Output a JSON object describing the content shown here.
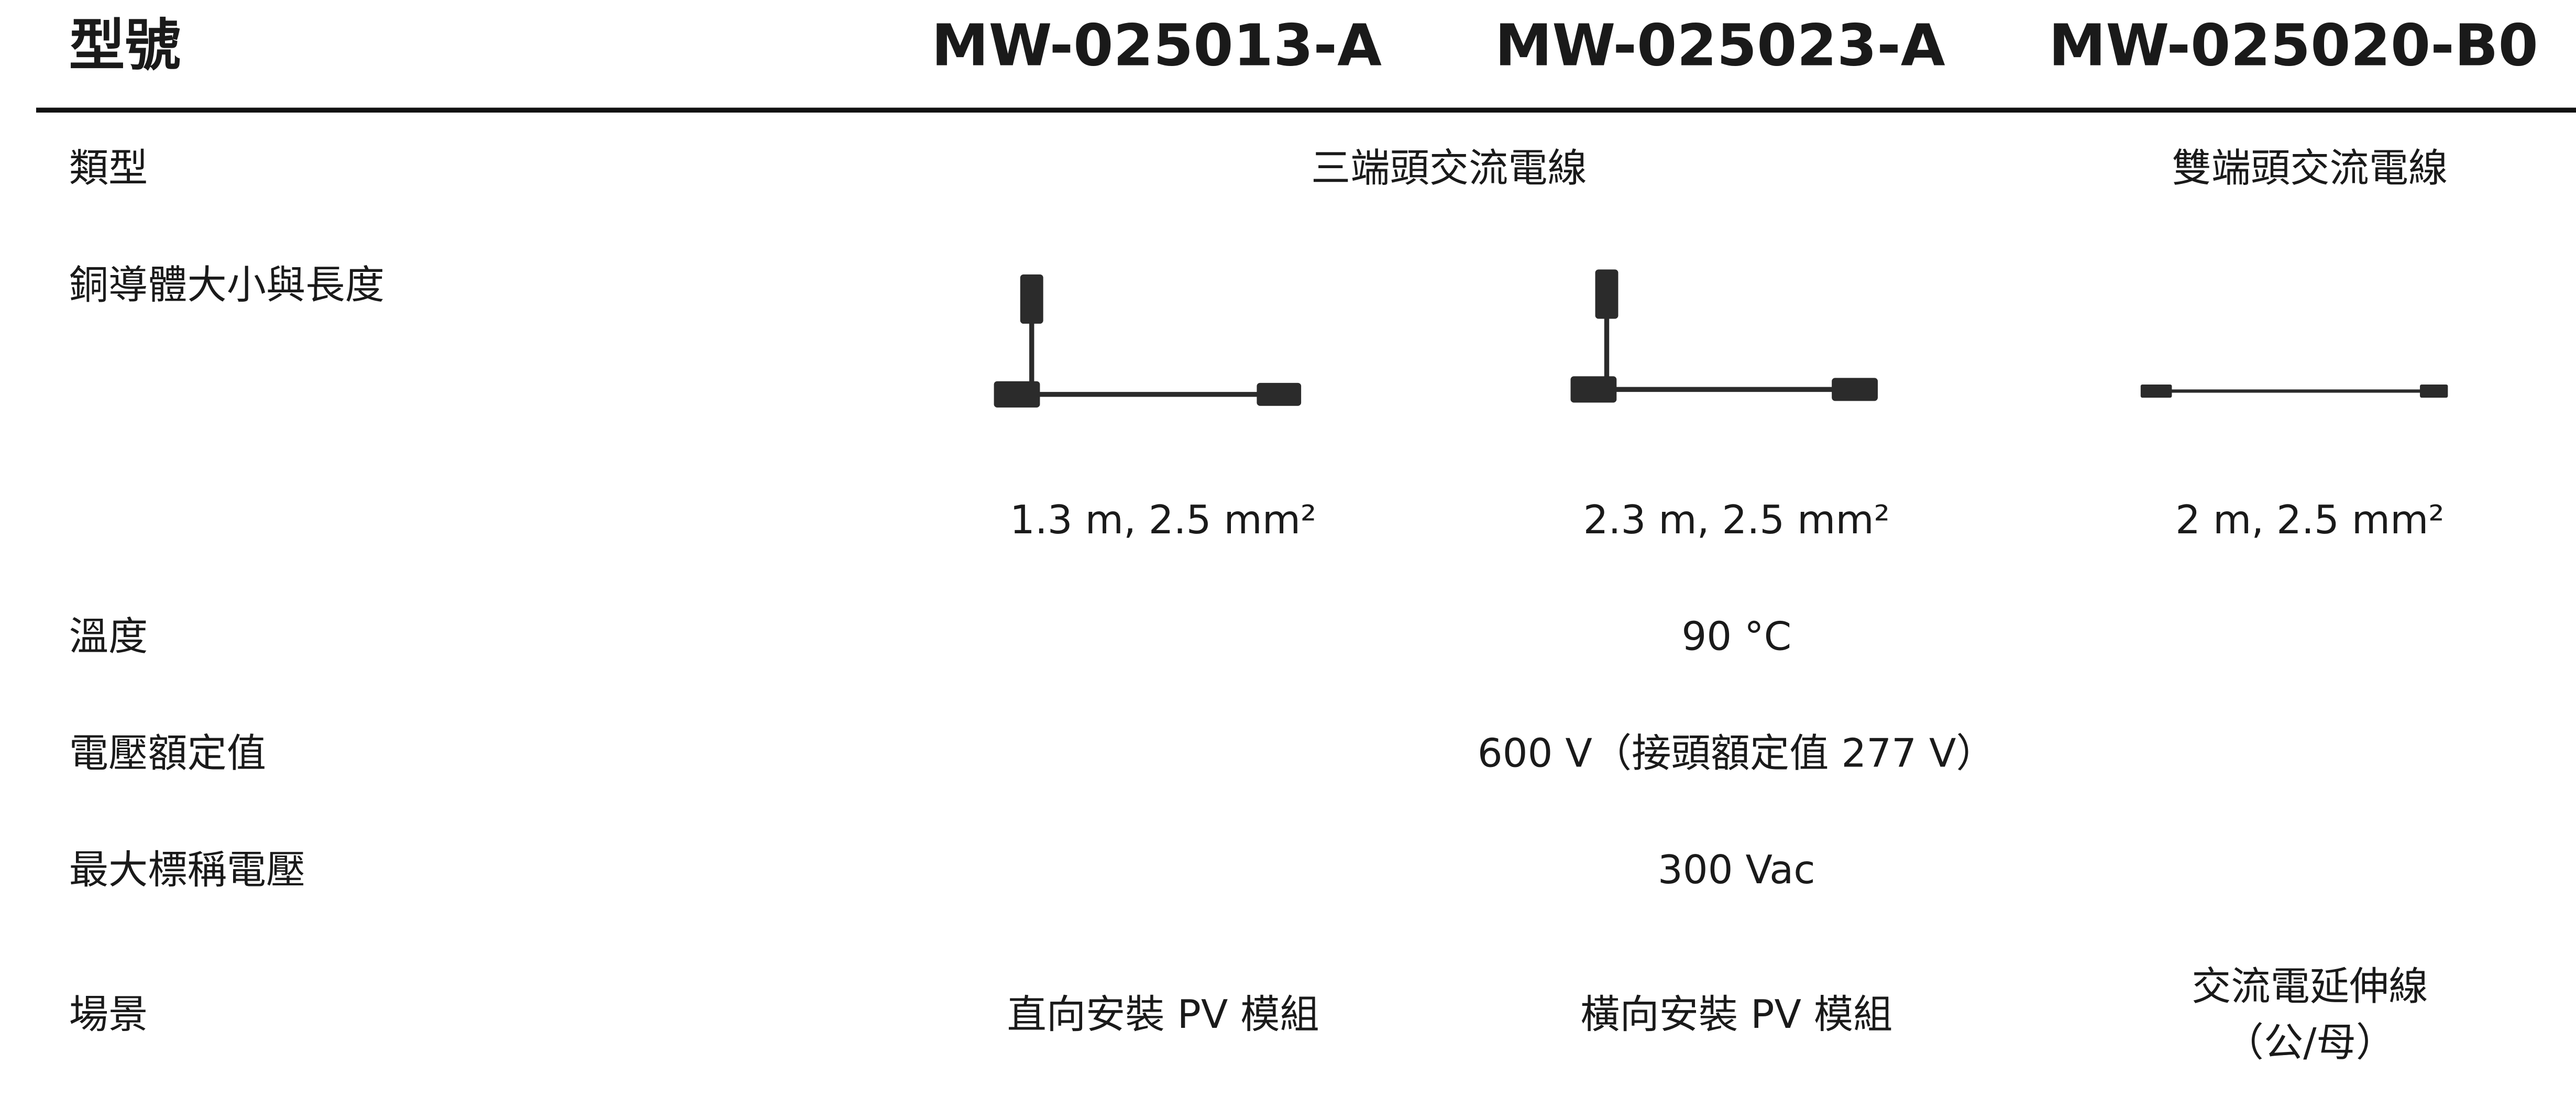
{
  "header": {
    "label": "型號",
    "models": [
      "MW-025013-A",
      "MW-025023-A",
      "MW-025020-B0"
    ]
  },
  "rows": [
    {
      "label": "類型",
      "cells": [
        "三端頭交流電線",
        "雙端頭交流電線"
      ]
    },
    {
      "label": "銅導體大小與長度",
      "cells": [
        "1.3 m, 2.5 mm²",
        "2.3 m, 2.5 mm²",
        "2 m, 2.5 mm²"
      ]
    },
    {
      "label": "溫度",
      "cells": [
        "90 °C"
      ]
    },
    {
      "label": "電壓額定值",
      "cells": [
        "600 V（接頭額定值 277 V）"
      ]
    },
    {
      "label": "最大標稱電壓",
      "cells": [
        "300 Vac"
      ]
    },
    {
      "label": "場景",
      "cells": [
        "直向安裝 PV 模組",
        "橫向安裝 PV 模組",
        [
          "交流電延伸線",
          "（公/母）"
        ]
      ]
    }
  ]
}
